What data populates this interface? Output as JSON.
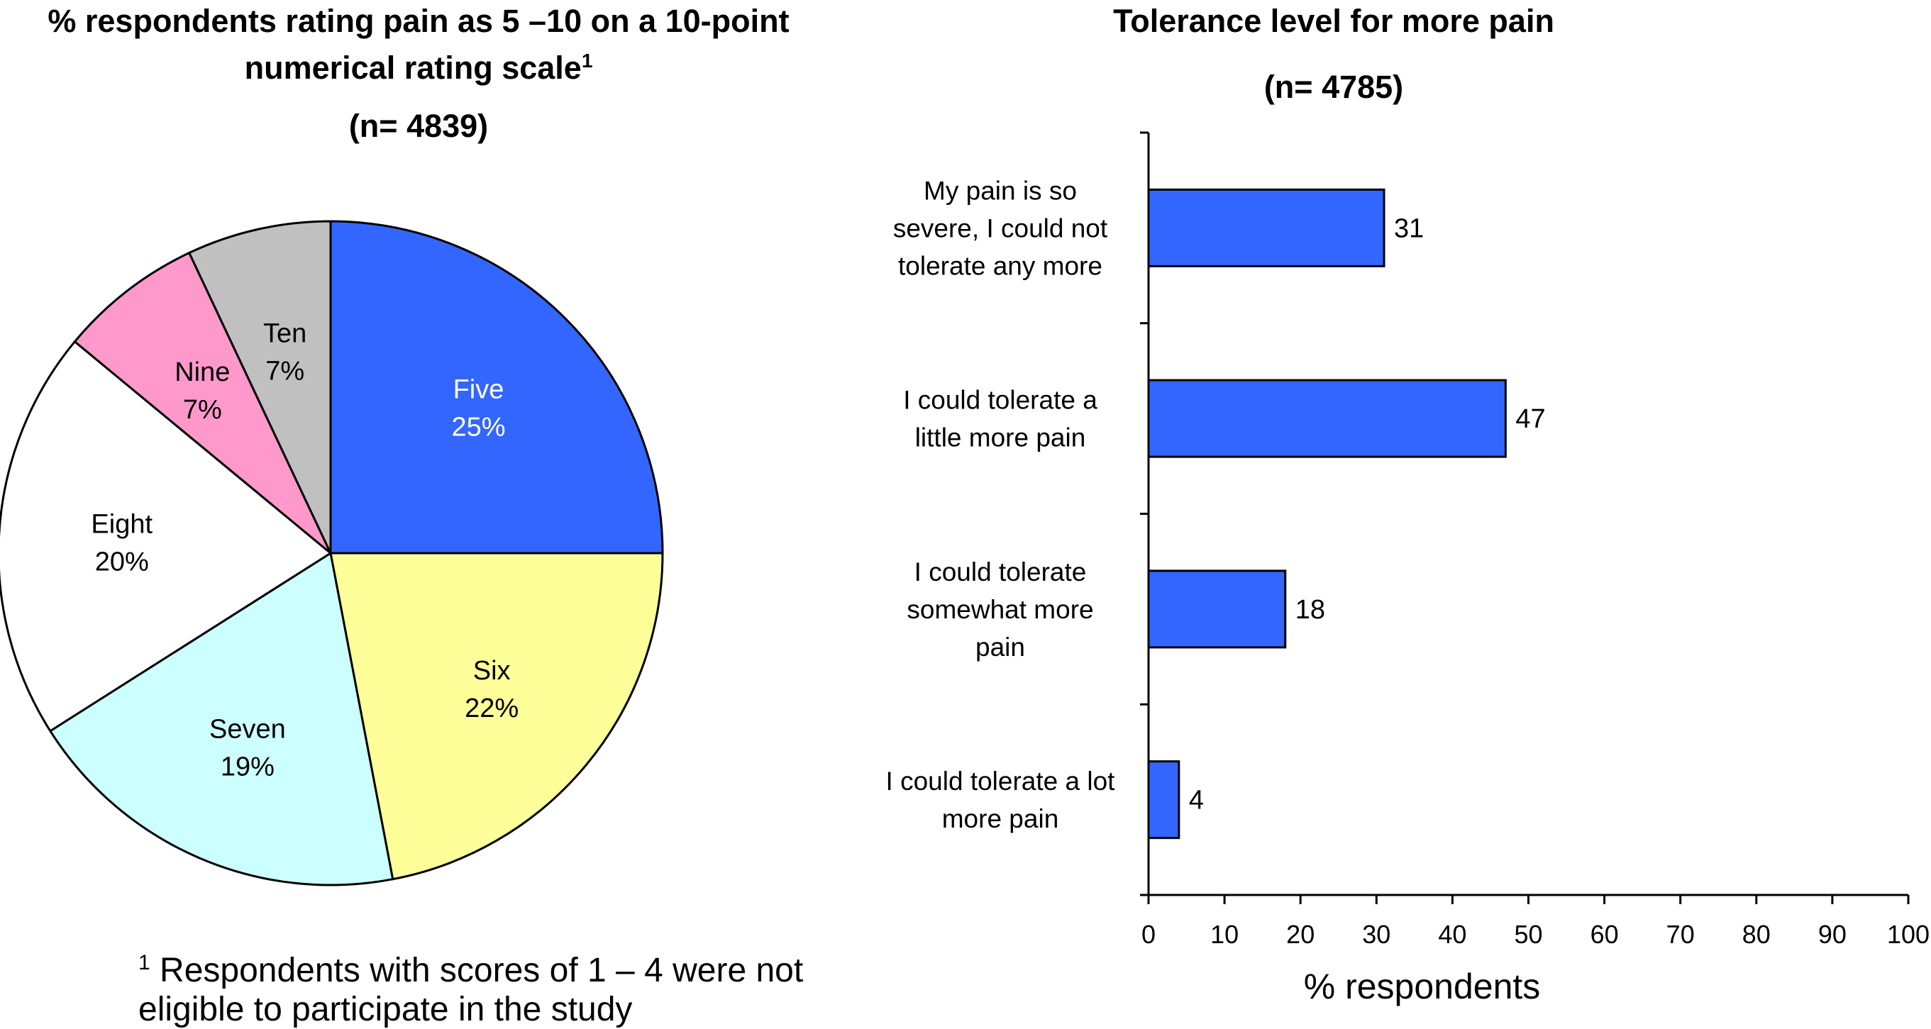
{
  "left_chart": {
    "title_line1": "% respondents rating pain as 5 –10 on a 10-point",
    "title_line2": "numerical rating scale",
    "title_superscript": "1",
    "n_label": "(n= 4839)",
    "footnote_superscript": "1",
    "footnote_text": " Respondents with scores of 1 – 4 were not eligible to participate in the study"
  },
  "right_chart": {
    "title": "Tolerance level for more pain",
    "n_label": "(n= 4785)"
  },
  "chart_data": [
    {
      "type": "pie",
      "title": "% respondents rating pain as 5 –10 on a 10-point numerical rating scale",
      "labels": [
        "Five",
        "Six",
        "Seven",
        "Eight",
        "Nine",
        "Ten"
      ],
      "values": [
        25,
        22,
        19,
        20,
        7,
        7
      ],
      "value_labels": [
        "25%",
        "22%",
        "19%",
        "20%",
        "7%",
        "7%"
      ],
      "colors": [
        "#3366ff",
        "#ffff99",
        "#ccffff",
        "#ffffff",
        "#ff99cc",
        "#c0c0c0"
      ],
      "label_colors": [
        "#ffffff",
        "#000000",
        "#000000",
        "#000000",
        "#000000",
        "#000000"
      ],
      "start": "12 o'clock",
      "direction": "clockwise"
    },
    {
      "type": "bar",
      "orientation": "horizontal",
      "title": "Tolerance level for more pain",
      "categories": [
        [
          "My pain is so",
          "severe, I could not",
          "tolerate any more"
        ],
        [
          "I could tolerate a",
          "little more pain"
        ],
        [
          "I could tolerate",
          "somewhat more",
          "pain"
        ],
        [
          "I could tolerate a lot",
          "more pain"
        ]
      ],
      "values": [
        31,
        47,
        18,
        4
      ],
      "data_labels": [
        "31",
        "47",
        "18",
        "4"
      ],
      "xlabel": "% respondents",
      "ylabel": "",
      "xlim": [
        0,
        100
      ],
      "xticks": [
        "0",
        "10",
        "20",
        "30",
        "40",
        "50",
        "60",
        "70",
        "80",
        "90",
        "100"
      ],
      "bar_color": "#3366ff",
      "grid": false
    }
  ]
}
